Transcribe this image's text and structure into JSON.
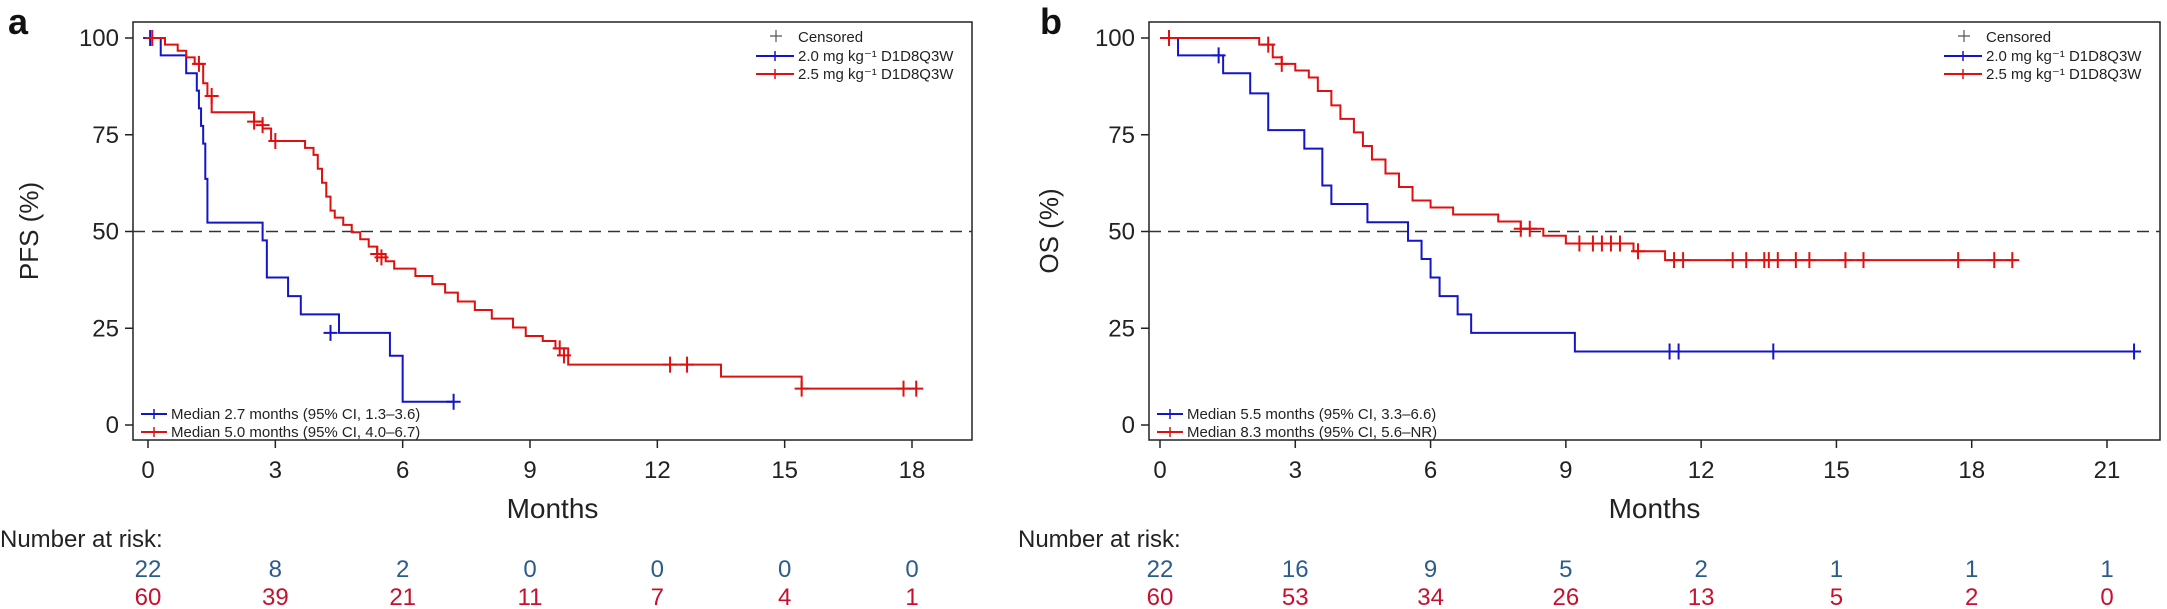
{
  "panels": [
    {
      "panel_label": "a",
      "risk_label": "Number at risk:",
      "risk_rows": [
        {
          "color": "#2b5c8a",
          "values": [
            "22",
            "8",
            "2",
            "0",
            "0",
            "0",
            "0"
          ]
        },
        {
          "color": "#c8102e",
          "values": [
            "60",
            "39",
            "21",
            "11",
            "7",
            "4",
            "1"
          ]
        }
      ]
    },
    {
      "panel_label": "b",
      "risk_label": "Number at risk:",
      "risk_rows": [
        {
          "color": "#2b5c8a",
          "values": [
            "22",
            "16",
            "9",
            "5",
            "2",
            "1",
            "1",
            "1"
          ]
        },
        {
          "color": "#c8102e",
          "values": [
            "60",
            "53",
            "34",
            "26",
            "13",
            "5",
            "2",
            "0"
          ]
        }
      ]
    }
  ],
  "chart_data": [
    {
      "type": "line",
      "title": "",
      "xlabel": "Months",
      "ylabel": "PFS (%)",
      "xlim": [
        0,
        18.5
      ],
      "ylim": [
        0,
        100
      ],
      "xticks": [
        0,
        3,
        6,
        9,
        12,
        15,
        18
      ],
      "yticks": [
        0,
        25,
        50,
        75,
        100
      ],
      "reference_line_y": 50,
      "legend": {
        "position": "top-right",
        "censored_label": "Censored",
        "entries": [
          {
            "name": "2.0 mg kg⁻¹ D1D8Q3W",
            "color": "#1515c8"
          },
          {
            "name": "2.5 mg kg⁻¹ D1D8Q3W",
            "color": "#e01010"
          }
        ]
      },
      "median_legend": {
        "position": "bottom-left",
        "entries": [
          {
            "text": "Median 2.7 months (95% CI, 1.3–3.6)",
            "color": "#1515c8"
          },
          {
            "text": "Median 5.0 months (95% CI, 4.0–6.7)",
            "color": "#e01010"
          }
        ]
      },
      "series": [
        {
          "name": "2.0 mg kg⁻¹ D1D8Q3W",
          "color": "#1515c8",
          "step_x": [
            0,
            0.3,
            0.9,
            1.15,
            1.2,
            1.25,
            1.3,
            1.35,
            1.4,
            2.7,
            2.8,
            3.3,
            3.6,
            4.5,
            5.7,
            6.0,
            7.2
          ],
          "step_y": [
            100,
            95.5,
            90.9,
            86.4,
            81.8,
            77.3,
            72.7,
            63.6,
            52.3,
            47.7,
            38.1,
            33.3,
            28.6,
            23.8,
            17.9,
            6.0,
            6.0
          ],
          "censor_x": [
            0.05,
            4.3,
            7.2
          ],
          "censor_y": [
            100,
            23.8,
            6.0
          ]
        },
        {
          "name": "2.5 mg kg⁻¹ D1D8Q3W",
          "color": "#e01010",
          "step_x": [
            0,
            0.4,
            0.7,
            0.9,
            1.1,
            1.3,
            1.4,
            1.5,
            2.5,
            2.7,
            2.9,
            3.7,
            3.9,
            4.0,
            4.1,
            4.2,
            4.3,
            4.4,
            4.6,
            4.8,
            5.0,
            5.2,
            5.4,
            5.6,
            5.8,
            6.3,
            6.7,
            7.0,
            7.3,
            7.7,
            8.1,
            8.6,
            8.9,
            9.3,
            9.6,
            9.9,
            13.5,
            15.4,
            18.1
          ],
          "step_y": [
            100,
            98.3,
            96.7,
            95.0,
            93.3,
            88.3,
            85.0,
            80.8,
            78.4,
            76.6,
            73.4,
            71.6,
            69.8,
            66.2,
            62.6,
            59.0,
            55.4,
            53.6,
            51.7,
            49.8,
            48.0,
            46.1,
            44.2,
            42.3,
            40.4,
            38.5,
            36.4,
            34.2,
            31.9,
            29.7,
            27.5,
            25.2,
            23.0,
            21.7,
            19.8,
            15.6,
            12.5,
            9.4,
            9.4
          ],
          "censor_x": [
            0.1,
            1.2,
            1.5,
            2.5,
            2.7,
            3.0,
            5.4,
            5.5,
            9.7,
            9.8,
            12.3,
            12.7,
            15.4,
            17.8,
            18.1
          ],
          "censor_y": [
            100,
            93.3,
            85.0,
            78.4,
            77.5,
            73.4,
            44.2,
            43.3,
            19.8,
            18.0,
            15.6,
            15.6,
            9.4,
            9.4,
            9.4
          ]
        }
      ]
    },
    {
      "type": "line",
      "title": "",
      "xlabel": "Months",
      "ylabel": "OS (%)",
      "xlim": [
        0,
        22
      ],
      "ylim": [
        0,
        100
      ],
      "xticks": [
        0,
        3,
        6,
        9,
        12,
        15,
        18,
        21
      ],
      "yticks": [
        0,
        25,
        50,
        75,
        100
      ],
      "reference_line_y": 50,
      "legend": {
        "position": "top-right",
        "censored_label": "Censored",
        "entries": [
          {
            "name": "2.0 mg kg⁻¹ D1D8Q3W",
            "color": "#1515c8"
          },
          {
            "name": "2.5 mg kg⁻¹ D1D8Q3W",
            "color": "#e01010"
          }
        ]
      },
      "median_legend": {
        "position": "bottom-left",
        "entries": [
          {
            "text": "Median 5.5 months (95% CI, 3.3–6.6)",
            "color": "#1515c8"
          },
          {
            "text": "Median 8.3 months (95% CI, 5.6–NR)",
            "color": "#e01010"
          }
        ]
      },
      "series": [
        {
          "name": "2.0 mg kg⁻¹ D1D8Q3W",
          "color": "#1515c8",
          "step_x": [
            0,
            0.4,
            1.4,
            2.0,
            2.4,
            3.2,
            3.6,
            3.8,
            4.6,
            5.5,
            5.8,
            6.0,
            6.2,
            6.6,
            6.9,
            9.2,
            21.6
          ],
          "step_y": [
            100,
            95.5,
            90.9,
            85.7,
            76.2,
            71.4,
            61.9,
            57.1,
            52.4,
            47.6,
            42.9,
            38.1,
            33.3,
            28.6,
            23.8,
            19.0,
            19.0
          ],
          "censor_x": [
            1.3,
            11.3,
            11.5,
            13.6,
            21.6
          ],
          "censor_y": [
            95.5,
            19.0,
            19.0,
            19.0,
            19.0
          ]
        },
        {
          "name": "2.5 mg kg⁻¹ D1D8Q3W",
          "color": "#e01010",
          "step_x": [
            0,
            0.2,
            2.2,
            2.5,
            2.7,
            3.0,
            3.3,
            3.5,
            3.8,
            4.0,
            4.3,
            4.5,
            4.7,
            5.0,
            5.3,
            5.6,
            6.0,
            6.5,
            7.5,
            8.0,
            8.5,
            9.0,
            10.5,
            11.2,
            19.0
          ],
          "step_y": [
            100,
            100,
            98.3,
            95.0,
            93.3,
            91.6,
            89.8,
            86.3,
            82.6,
            79.1,
            75.6,
            72.1,
            68.6,
            65.0,
            61.5,
            58.0,
            56.2,
            54.4,
            52.6,
            50.7,
            48.9,
            46.9,
            44.9,
            42.6,
            42.6
          ],
          "censor_x": [
            0.2,
            2.4,
            2.7,
            8.0,
            8.2,
            9.3,
            9.6,
            9.8,
            10.0,
            10.2,
            10.6,
            11.4,
            11.6,
            12.7,
            13.0,
            13.4,
            13.5,
            13.7,
            14.1,
            14.4,
            15.2,
            15.6,
            17.7,
            18.5,
            18.9
          ],
          "censor_y": [
            100,
            98.3,
            93.3,
            50.7,
            50.7,
            46.9,
            46.9,
            46.9,
            46.9,
            46.9,
            44.9,
            42.6,
            42.6,
            42.6,
            42.6,
            42.6,
            42.6,
            42.6,
            42.6,
            42.6,
            42.6,
            42.6,
            42.6,
            42.6,
            42.6
          ]
        }
      ]
    }
  ]
}
